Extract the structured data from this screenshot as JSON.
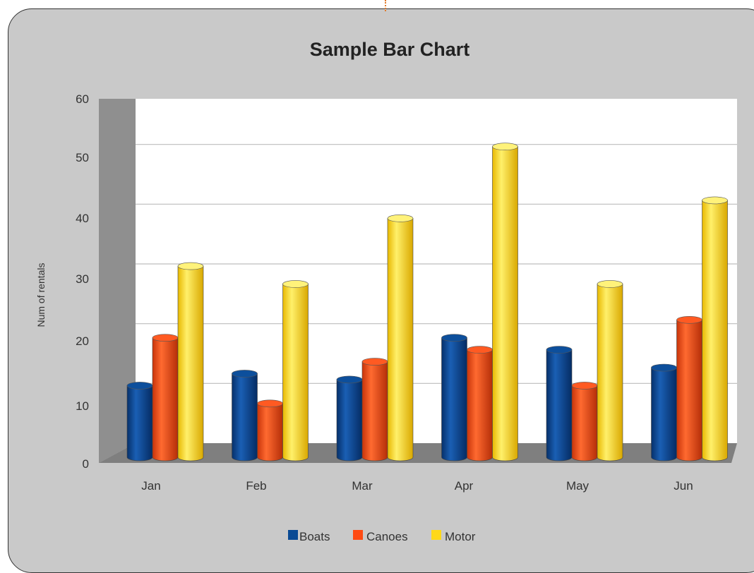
{
  "chart_data": {
    "type": "bar",
    "title": "Sample Bar Chart",
    "xlabel": "",
    "ylabel": "Num of rentals",
    "categories": [
      "Jan",
      "Feb",
      "Mar",
      "Apr",
      "May",
      "Jun"
    ],
    "series": [
      {
        "name": "Boats",
        "values": [
          12,
          14,
          13,
          20,
          18,
          15
        ],
        "color": "#0a4a94"
      },
      {
        "name": "Canoes",
        "values": [
          20,
          9,
          16,
          18,
          12,
          23
        ],
        "color": "#ff4a12"
      },
      {
        "name": "Motor",
        "values": [
          32,
          29,
          40,
          52,
          29,
          43
        ],
        "color": "#ffd81a"
      }
    ],
    "ylim": [
      0,
      60
    ],
    "yticks": [
      "0",
      "10",
      "20",
      "30",
      "40",
      "50",
      "60"
    ],
    "grid": true,
    "legend": "bottom",
    "style": "3d-cylinder"
  }
}
